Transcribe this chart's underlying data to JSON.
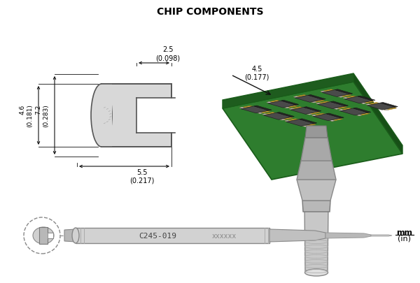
{
  "title": "CHIP COMPONENTS",
  "title_fontsize": 10,
  "title_fontweight": "bold",
  "bg_color": "#ffffff",
  "label_code": "C245-019",
  "label_x": "xxxxxx",
  "label_mm": "mm\n(in)",
  "green_board_top": "#2e7d2e",
  "green_board_side_front": "#1e5c1e",
  "green_board_side_right": "#174f17",
  "gold_pad": "#c8a430",
  "chip_top": "#4a4a4a",
  "chip_front": "#2a2a2a",
  "chip_end_light": "#d0d0d0",
  "tip_light": "#cccccc",
  "tip_mid": "#b0b0b0",
  "tip_dark": "#909090",
  "handle_gray": "#d2d2d2",
  "arrow_color": "#111111",
  "dim_color": "#111111",
  "line_color": "#555555"
}
